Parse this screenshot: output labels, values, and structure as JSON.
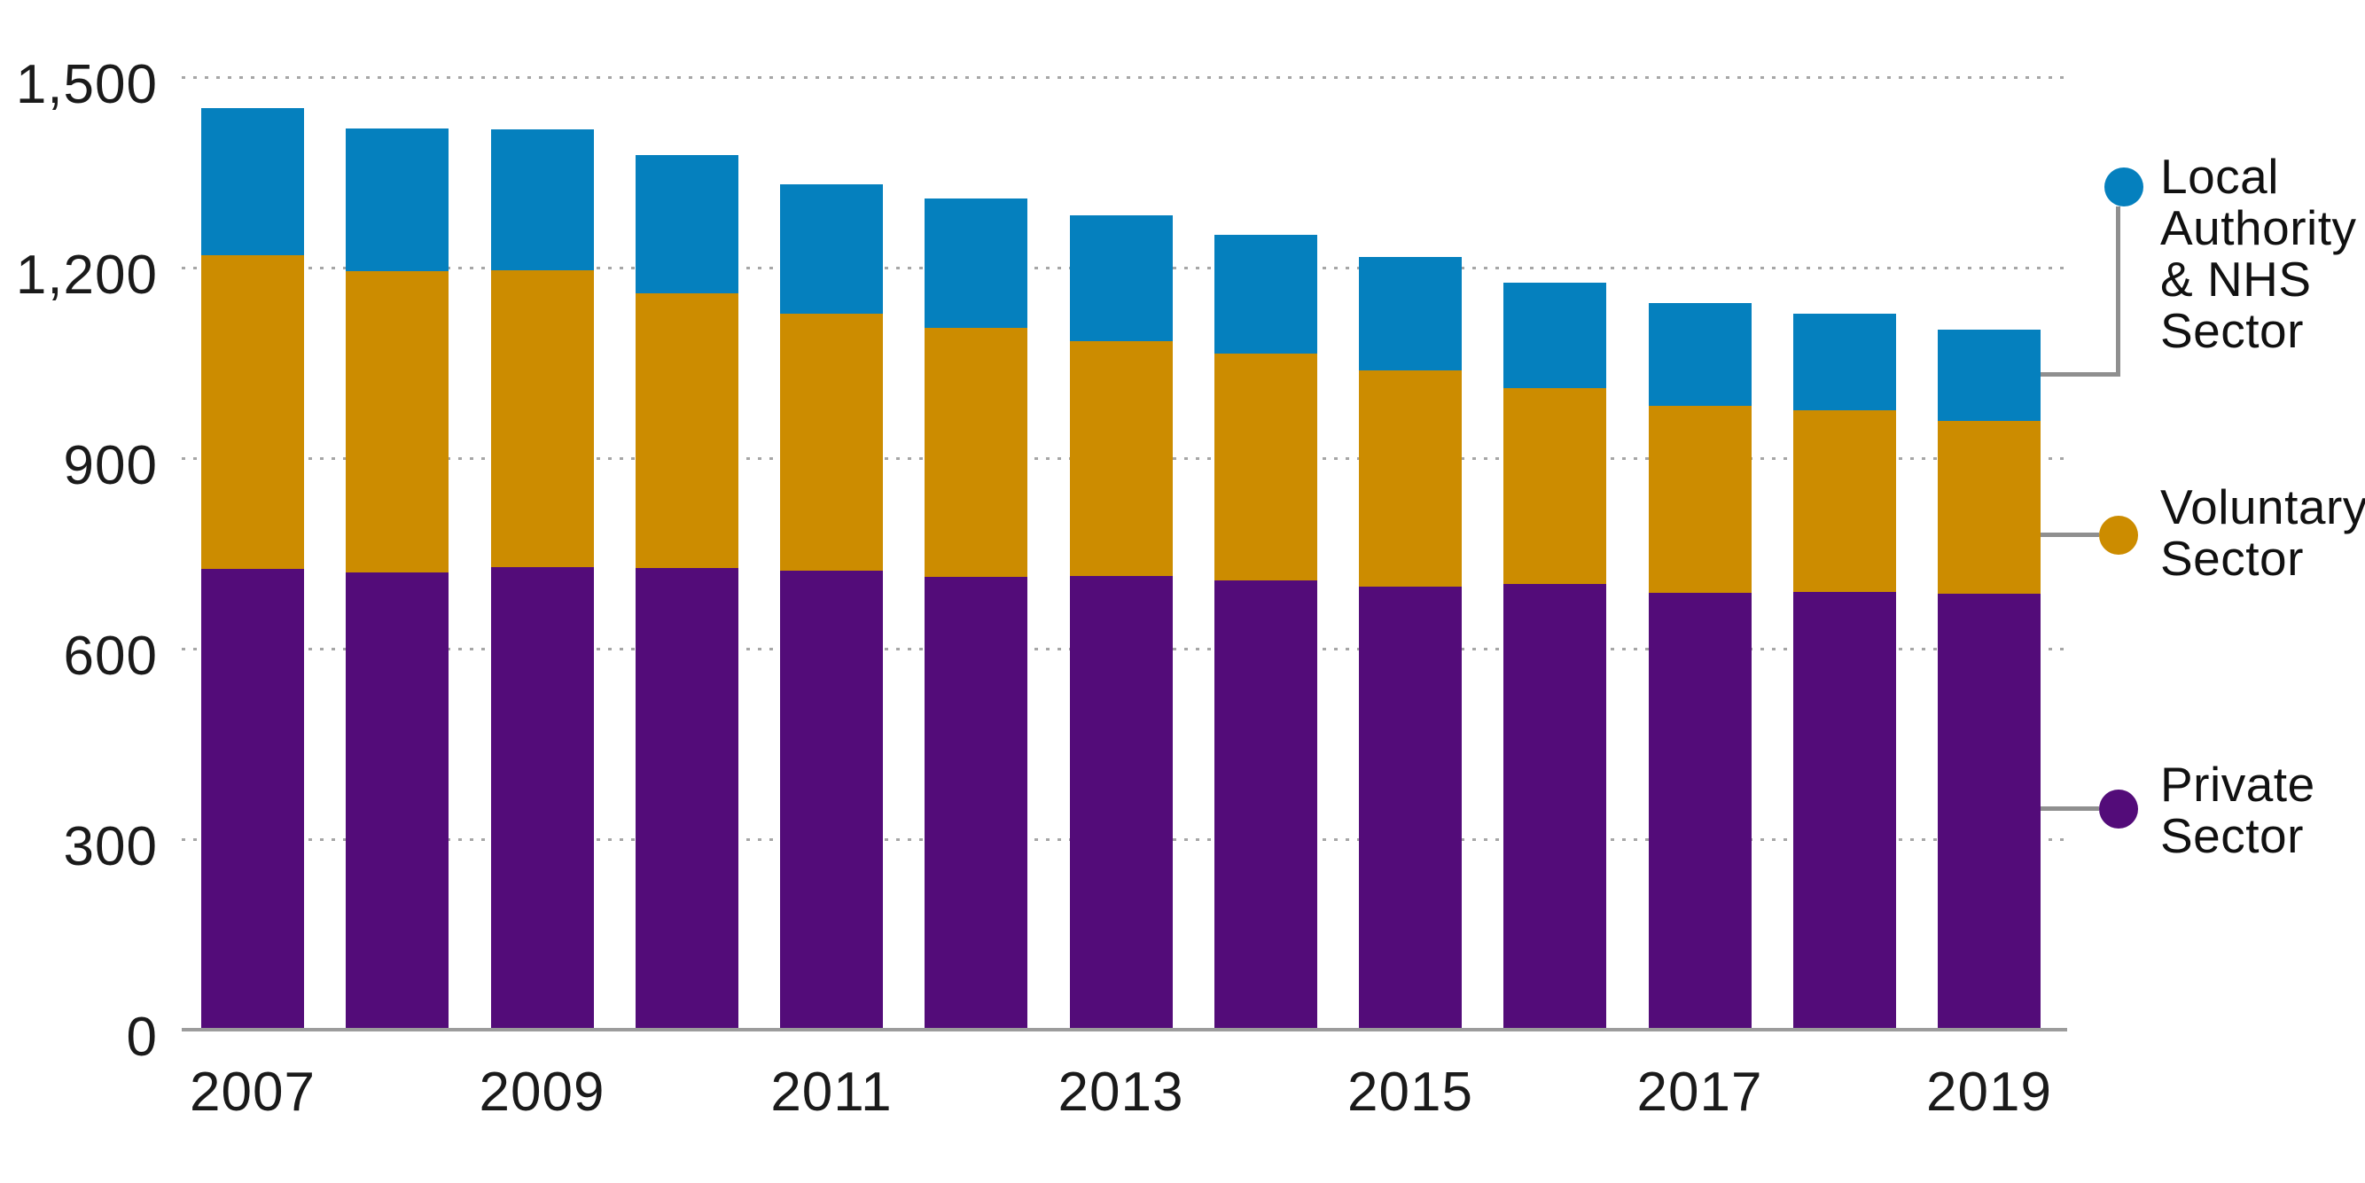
{
  "chart_data": {
    "type": "bar",
    "stacked": true,
    "title": "",
    "xlabel": "",
    "ylabel": "",
    "categories": [
      2007,
      2008,
      2009,
      2010,
      2011,
      2012,
      2013,
      2014,
      2015,
      2016,
      2017,
      2018,
      2019
    ],
    "x_tick_labels": [
      "2007",
      "2009",
      "2011",
      "2013",
      "2015",
      "2017",
      "2019"
    ],
    "series": [
      {
        "name": "Private Sector",
        "color": "#530C79",
        "values": [
          726,
          720,
          728,
          727,
          723,
          713,
          714,
          708,
          698,
          702,
          688,
          689,
          687
        ]
      },
      {
        "name": "Voluntary Sector",
        "color": "#CC8C00",
        "values": [
          493,
          475,
          468,
          433,
          404,
          392,
          370,
          357,
          340,
          308,
          295,
          286,
          271
        ]
      },
      {
        "name": "Local Authority & NHS Sector",
        "color": "#0580BE",
        "values": [
          232,
          224,
          222,
          217,
          204,
          204,
          199,
          186,
          179,
          166,
          161,
          153,
          145
        ]
      }
    ],
    "totals": [
      1451,
      1419,
      1418,
      1377,
      1331,
      1309,
      1283,
      1251,
      1217,
      1176,
      1144,
      1128,
      1103
    ],
    "ylim": [
      0,
      1500
    ],
    "y_ticks": [
      0,
      300,
      600,
      900,
      1200,
      1500
    ],
    "y_tick_labels": [
      "0",
      "300",
      "600",
      "900",
      "1,200",
      "1,500"
    ],
    "grid": "horizontal-dotted",
    "legend_position": "right",
    "legend": [
      {
        "series": "Local Authority & NHS Sector",
        "lines": [
          "Local",
          "Authority",
          "& NHS",
          "Sector"
        ],
        "color": "#0580BE"
      },
      {
        "series": "Voluntary Sector",
        "lines": [
          "Voluntary",
          "Sector"
        ],
        "color": "#CC8C00"
      },
      {
        "series": "Private Sector",
        "lines": [
          "Private",
          "Sector"
        ],
        "color": "#530C79"
      }
    ]
  },
  "colors": {
    "background": "#FFFFFF",
    "grid_dots": "#A6A6A6",
    "baseline": "#9C9C9C",
    "connector": "#8F8F8F",
    "text": "#111111"
  }
}
